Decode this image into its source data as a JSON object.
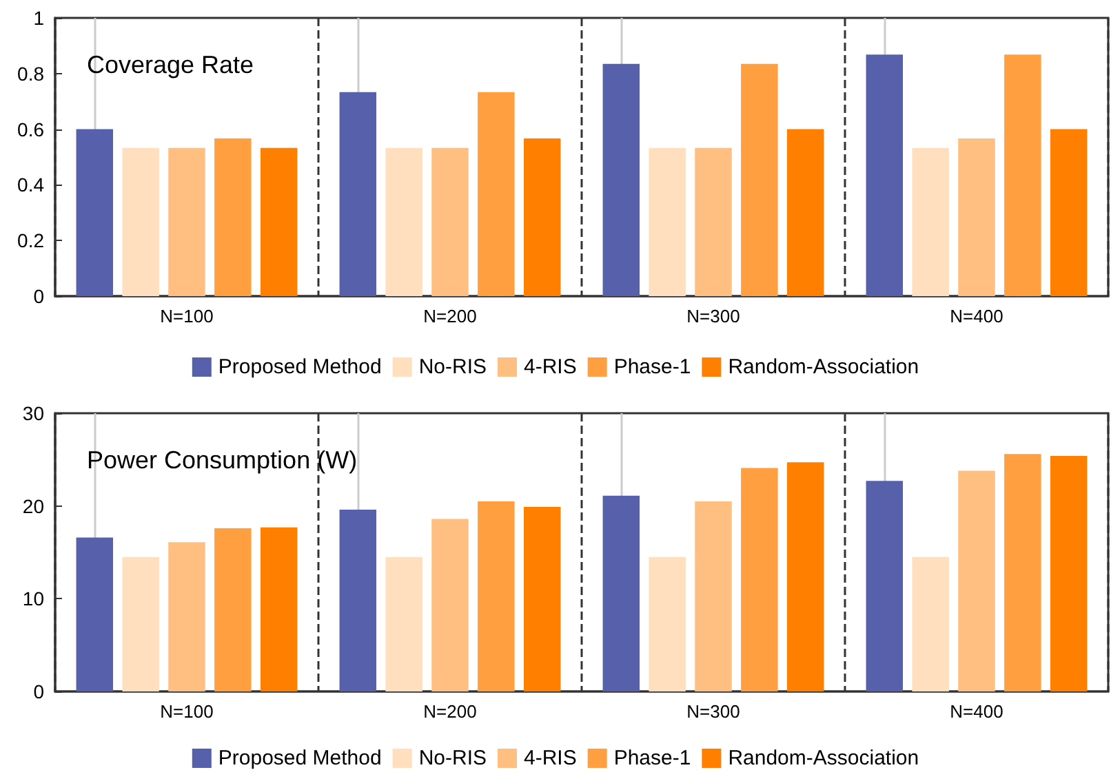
{
  "chart_data": [
    {
      "type": "bar",
      "title": "Coverage Rate",
      "categories": [
        "N=100",
        "N=200",
        "N=300",
        "N=400"
      ],
      "ylim": [
        0,
        1
      ],
      "yticks": [
        0,
        0.2,
        0.4,
        0.6,
        0.8,
        1
      ],
      "grid": "x",
      "legend": "bottom",
      "series": [
        {
          "name": "Proposed Method",
          "color": "#5660ab",
          "values": [
            0.6,
            0.733,
            0.835,
            0.868
          ]
        },
        {
          "name": "No-RIS",
          "color": "#ffdfbd",
          "values": [
            0.533,
            0.533,
            0.533,
            0.533
          ]
        },
        {
          "name": "4-RIS",
          "color": "#ffbf80",
          "values": [
            0.533,
            0.533,
            0.533,
            0.567
          ]
        },
        {
          "name": "Phase-1",
          "color": "#ff9f40",
          "values": [
            0.567,
            0.733,
            0.835,
            0.868
          ]
        },
        {
          "name": "Random-Association",
          "color": "#ff8000",
          "values": [
            0.533,
            0.567,
            0.6,
            0.6
          ]
        }
      ]
    },
    {
      "type": "bar",
      "title": "Power Consumption (W)",
      "categories": [
        "N=100",
        "N=200",
        "N=300",
        "N=400"
      ],
      "ylim": [
        0,
        30
      ],
      "yticks": [
        0,
        10,
        20,
        30
      ],
      "grid": "x",
      "legend": "bottom",
      "series": [
        {
          "name": "Proposed Method",
          "color": "#5660ab",
          "values": [
            16.6,
            19.6,
            21.1,
            22.7
          ]
        },
        {
          "name": "No-RIS",
          "color": "#ffdfbd",
          "values": [
            14.5,
            14.5,
            14.5,
            14.5
          ]
        },
        {
          "name": "4-RIS",
          "color": "#ffbf80",
          "values": [
            16.1,
            18.6,
            20.5,
            23.8
          ]
        },
        {
          "name": "Phase-1",
          "color": "#ff9f40",
          "values": [
            17.6,
            20.5,
            24.1,
            25.6
          ]
        },
        {
          "name": "Random-Association",
          "color": "#ff8000",
          "values": [
            17.7,
            19.9,
            24.7,
            25.4
          ]
        }
      ]
    }
  ]
}
